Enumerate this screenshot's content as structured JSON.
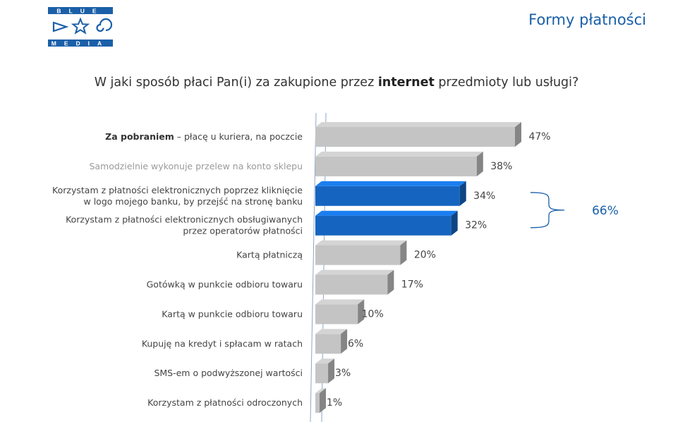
{
  "header": {
    "logo_top": "BLUE",
    "logo_bottom": "MEDIA",
    "title": "Formy płatności"
  },
  "question": {
    "pre": "W jaki sposób płaci Pan(i) za zakupione przez ",
    "bold": "internet",
    "post": " przedmioty lub usługi?"
  },
  "colors": {
    "grey": "#c4c4c4",
    "blue": "#1565c0",
    "accent": "#1a5fa8"
  },
  "chart_data": {
    "type": "bar",
    "orientation": "horizontal",
    "style": "3d",
    "unit": "%",
    "categories": [
      {
        "bold": "Za pobraniem",
        "rest": " – płacę u kuriera, na poczcie",
        "lines": []
      },
      {
        "bold": "",
        "rest": "",
        "lines": [
          "Samodzielnie wykonuje przelew na konto sklepu"
        ]
      },
      {
        "bold": "",
        "rest": "",
        "lines": [
          "Korzystam z płatności elektronicznych poprzez kliknięcie",
          "w logo mojego banku, by przejść na stronę banku"
        ]
      },
      {
        "bold": "",
        "rest": "",
        "lines": [
          "Korzystam z płatności elektronicznych obsługiwanych",
          "przez operatorów płatności"
        ]
      },
      {
        "bold": "",
        "rest": "",
        "lines": [
          "Kartą płatniczą"
        ]
      },
      {
        "bold": "",
        "rest": "",
        "lines": [
          "Gotówką w punkcie odbioru towaru"
        ]
      },
      {
        "bold": "",
        "rest": "",
        "lines": [
          "Kartą w punkcie odbioru towaru"
        ]
      },
      {
        "bold": "",
        "rest": "",
        "lines": [
          "Kupuję na kredyt i spłacam w ratach"
        ]
      },
      {
        "bold": "",
        "rest": "",
        "lines": [
          "SMS-em  o podwyższonej wartości"
        ]
      },
      {
        "bold": "",
        "rest": "",
        "lines": [
          "Korzystam z płatności odroczonych"
        ]
      }
    ],
    "values": [
      47,
      38,
      34,
      32,
      20,
      17,
      10,
      6,
      3,
      1
    ],
    "value_labels": [
      "47%",
      "38%",
      "34%",
      "32%",
      "20%",
      "17%",
      "10%",
      "6%",
      "3%",
      "1%"
    ],
    "highlighted": [
      false,
      false,
      true,
      true,
      false,
      false,
      false,
      false,
      false,
      false
    ],
    "bracket": {
      "items": [
        2,
        3
      ],
      "label": "66%"
    },
    "xlim": [
      0,
      47
    ]
  }
}
